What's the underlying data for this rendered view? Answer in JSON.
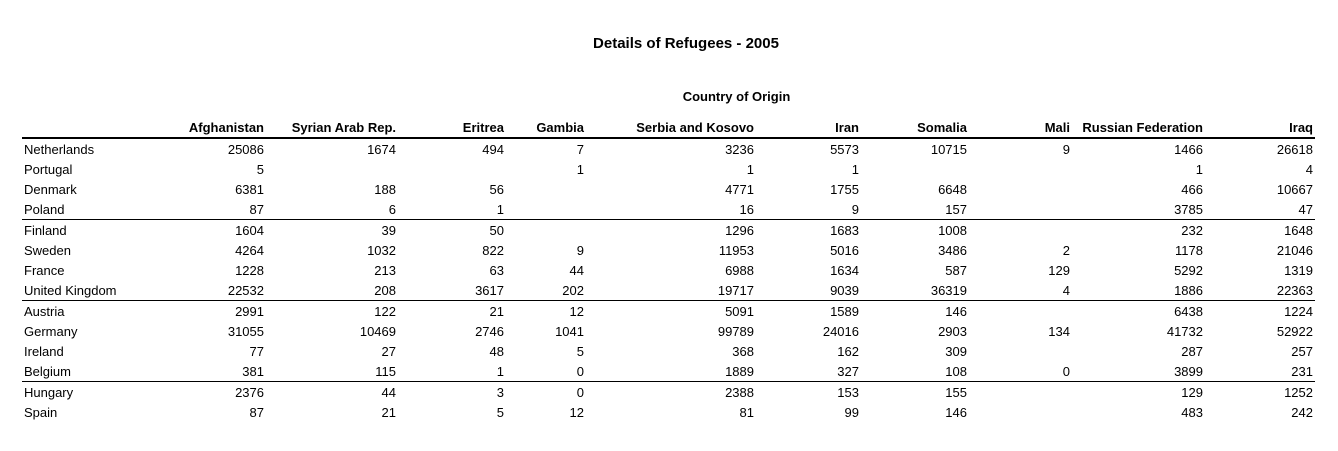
{
  "title": "Details of Refugees - 2005",
  "subtitle": "Country of Origin",
  "columns": [
    "Afghanistan",
    "Syrian Arab Rep.",
    "Eritrea",
    "Gambia",
    "Serbia and Kosovo",
    "Iran",
    "Somalia",
    "Mali",
    "Russian Federation",
    "Iraq"
  ],
  "rows": [
    {
      "country": "Netherlands",
      "values": [
        "25086",
        "1674",
        "494",
        "7",
        "3236",
        "5573",
        "10715",
        "9",
        "1466",
        "26618"
      ]
    },
    {
      "country": "Portugal",
      "values": [
        "5",
        "",
        "",
        "1",
        "1",
        "1",
        "",
        "",
        "1",
        "4"
      ]
    },
    {
      "country": "Denmark",
      "values": [
        "6381",
        "188",
        "56",
        "",
        "4771",
        "1755",
        "6648",
        "",
        "466",
        "10667"
      ]
    },
    {
      "country": "Poland",
      "values": [
        "87",
        "6",
        "1",
        "",
        "16",
        "9",
        "157",
        "",
        "3785",
        "47"
      ]
    },
    {
      "country": "Finland",
      "values": [
        "1604",
        "39",
        "50",
        "",
        "1296",
        "1683",
        "1008",
        "",
        "232",
        "1648"
      ]
    },
    {
      "country": "Sweden",
      "values": [
        "4264",
        "1032",
        "822",
        "9",
        "11953",
        "5016",
        "3486",
        "2",
        "1178",
        "21046"
      ]
    },
    {
      "country": "France",
      "values": [
        "1228",
        "213",
        "63",
        "44",
        "6988",
        "1634",
        "587",
        "129",
        "5292",
        "1319"
      ]
    },
    {
      "country": "United Kingdom",
      "values": [
        "22532",
        "208",
        "3617",
        "202",
        "19717",
        "9039",
        "36319",
        "4",
        "1886",
        "22363"
      ]
    },
    {
      "country": "Austria",
      "values": [
        "2991",
        "122",
        "21",
        "12",
        "5091",
        "1589",
        "146",
        "",
        "6438",
        "1224"
      ]
    },
    {
      "country": "Germany",
      "values": [
        "31055",
        "10469",
        "2746",
        "1041",
        "99789",
        "24016",
        "2903",
        "134",
        "41732",
        "52922"
      ]
    },
    {
      "country": "Ireland",
      "values": [
        "77",
        "27",
        "48",
        "5",
        "368",
        "162",
        "309",
        "",
        "287",
        "257"
      ]
    },
    {
      "country": "Belgium",
      "values": [
        "381",
        "115",
        "1",
        "0",
        "1889",
        "327",
        "108",
        "0",
        "3899",
        "231"
      ]
    },
    {
      "country": "Hungary",
      "values": [
        "2376",
        "44",
        "3",
        "0",
        "2388",
        "153",
        "155",
        "",
        "129",
        "1252"
      ]
    },
    {
      "country": "Spain",
      "values": [
        "87",
        "21",
        "5",
        "12",
        "81",
        "99",
        "146",
        "",
        "483",
        "242"
      ]
    }
  ]
}
